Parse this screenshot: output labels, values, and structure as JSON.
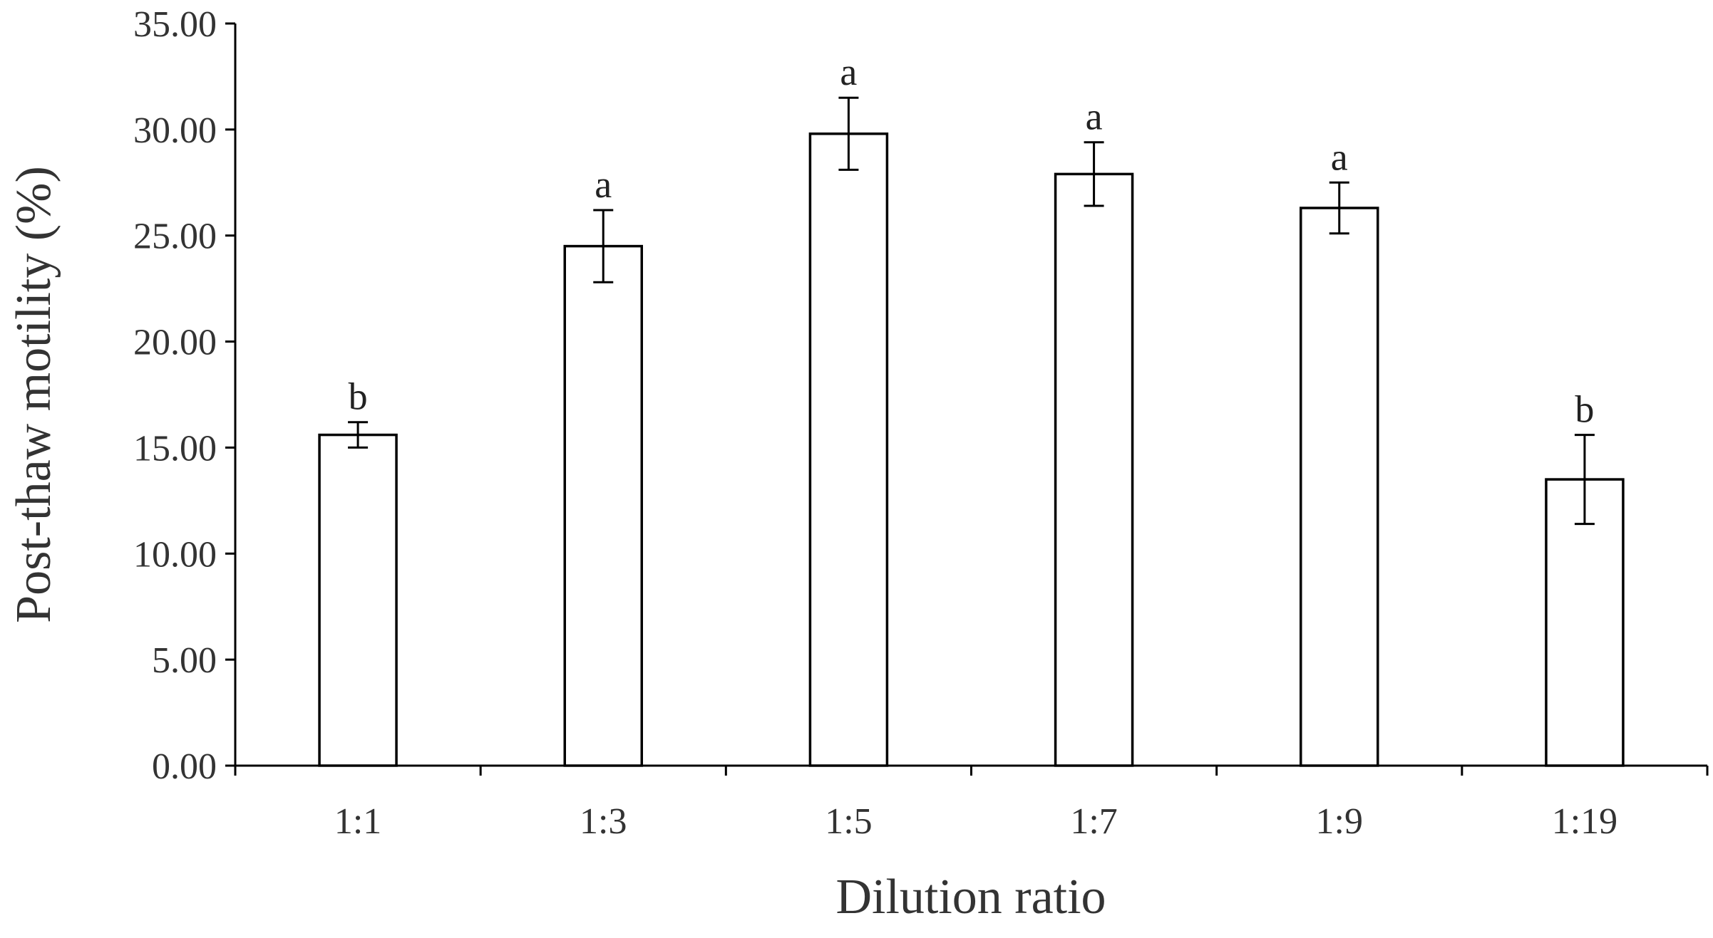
{
  "chart_data": {
    "type": "bar",
    "title": "",
    "xlabel": "Dilution ratio",
    "ylabel": "Post-thaw motility (%)",
    "categories": [
      "1:1",
      "1:3",
      "1:5",
      "1:7",
      "1:9",
      "1:19"
    ],
    "values": [
      15.6,
      24.5,
      29.8,
      27.9,
      26.3,
      13.5
    ],
    "errors": [
      0.6,
      1.7,
      1.7,
      1.5,
      1.2,
      2.1
    ],
    "significance": [
      "b",
      "a",
      "a",
      "a",
      "a",
      "b"
    ],
    "ylim": [
      0,
      35
    ],
    "yticks": [
      "0.00",
      "5.00",
      "10.00",
      "15.00",
      "20.00",
      "25.00",
      "30.00",
      "35.00"
    ],
    "grid": false,
    "legend": "none",
    "colors": {
      "bar_fill": "#ffffff",
      "bar_stroke": "#000000",
      "axis": "#000000"
    }
  }
}
